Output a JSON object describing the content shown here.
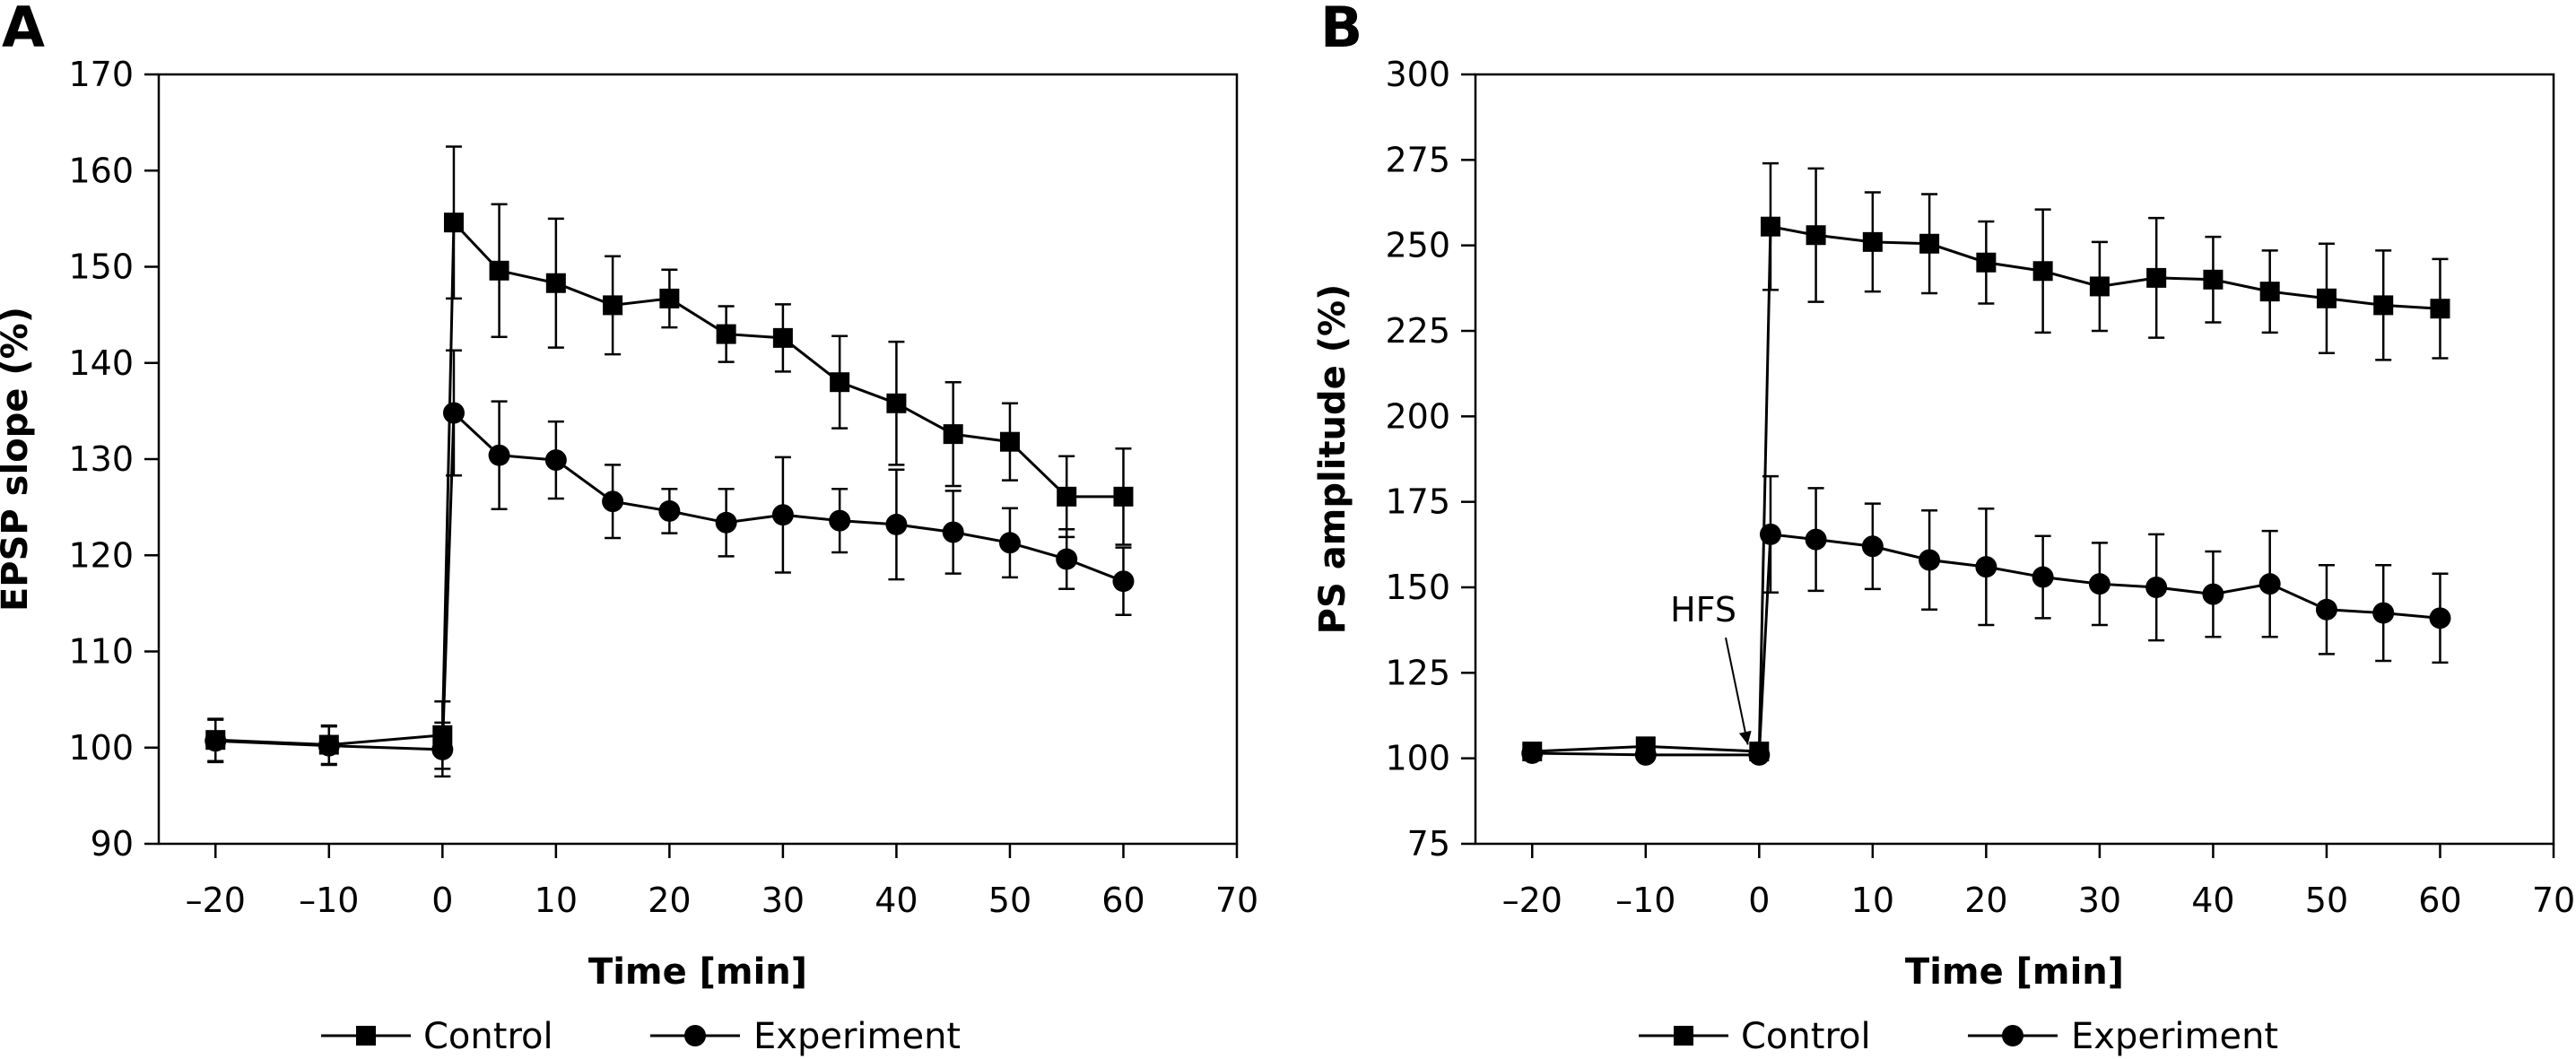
{
  "chart_data": [
    {
      "type": "line",
      "panel_label": "A",
      "xlabel": "Time [min]",
      "ylabel": "EPSP slope (%)",
      "xlim": [
        -25,
        70
      ],
      "ylim": [
        90,
        170
      ],
      "xticks": [
        -20,
        -10,
        0,
        10,
        20,
        30,
        40,
        50,
        60,
        70
      ],
      "xtick_labels": [
        "–20",
        "–10",
        "0",
        "10",
        "20",
        "30",
        "40",
        "50",
        "60",
        "70"
      ],
      "yticks": [
        90,
        100,
        110,
        120,
        130,
        140,
        150,
        160,
        170
      ],
      "grid": false,
      "legend_position": "bottom",
      "annotation": null,
      "series": [
        {
          "name": "Control",
          "marker": "square",
          "x": [
            -20,
            -10,
            0,
            1,
            5,
            10,
            15,
            20,
            25,
            30,
            35,
            40,
            45,
            50,
            55,
            60
          ],
          "y": [
            100.8,
            100.3,
            101.3,
            154.6,
            149.6,
            148.3,
            146.0,
            146.7,
            143.0,
            142.6,
            138.0,
            135.8,
            132.6,
            131.8,
            126.1,
            126.1
          ],
          "err": [
            2.2,
            2.0,
            3.5,
            7.9,
            6.9,
            6.7,
            5.1,
            3.0,
            2.9,
            3.5,
            4.8,
            6.4,
            5.4,
            4.0,
            4.2,
            5.0
          ]
        },
        {
          "name": "Experiment",
          "marker": "circle",
          "x": [
            -20,
            -10,
            0,
            1,
            5,
            10,
            15,
            20,
            25,
            30,
            35,
            40,
            45,
            50,
            55,
            60
          ],
          "y": [
            100.7,
            100.2,
            99.8,
            134.8,
            130.4,
            129.9,
            125.6,
            124.6,
            123.4,
            124.2,
            123.6,
            123.2,
            122.4,
            121.3,
            119.6,
            117.3
          ],
          "err": [
            2.2,
            2.0,
            2.8,
            6.5,
            5.6,
            4.0,
            3.8,
            2.3,
            3.5,
            6.0,
            3.3,
            5.7,
            4.3,
            3.6,
            3.1,
            3.5
          ]
        }
      ]
    },
    {
      "type": "line",
      "panel_label": "B",
      "xlabel": "Time [min]",
      "ylabel": "PS amplitude (%)",
      "xlim": [
        -25,
        70
      ],
      "ylim": [
        75,
        300
      ],
      "xticks": [
        -20,
        -10,
        0,
        10,
        20,
        30,
        40,
        50,
        60,
        70
      ],
      "xtick_labels": [
        "–20",
        "–10",
        "0",
        "10",
        "20",
        "30",
        "40",
        "50",
        "60",
        "70"
      ],
      "yticks": [
        75,
        100,
        125,
        150,
        175,
        200,
        225,
        250,
        275,
        300
      ],
      "grid": false,
      "legend_position": "bottom",
      "annotation": {
        "text": "HFS",
        "x": -2,
        "y": 140,
        "arrow_to_x": -1,
        "arrow_to_y": 104
      },
      "series": [
        {
          "name": "Control",
          "marker": "square",
          "x": [
            -20,
            -10,
            0,
            1,
            5,
            10,
            15,
            20,
            25,
            30,
            35,
            40,
            45,
            50,
            55,
            60
          ],
          "y": [
            102,
            103.5,
            102,
            255.5,
            253,
            251,
            250.5,
            245,
            242.5,
            238,
            240.5,
            240,
            236.5,
            234.5,
            232.5,
            231.5
          ],
          "err": [
            0,
            0,
            0,
            18.5,
            19.5,
            14.5,
            14.5,
            12,
            18,
            13,
            17.5,
            12.5,
            12,
            16,
            16,
            14.5
          ]
        },
        {
          "name": "Experiment",
          "marker": "circle",
          "x": [
            -20,
            -10,
            0,
            1,
            5,
            10,
            15,
            20,
            25,
            30,
            35,
            40,
            45,
            50,
            55,
            60
          ],
          "y": [
            101.5,
            101,
            101,
            165.5,
            164,
            162,
            158,
            156,
            153,
            151,
            150,
            148,
            151,
            143.5,
            142.5,
            141
          ],
          "err": [
            0,
            0,
            0,
            17,
            15,
            12.5,
            14.5,
            17,
            12,
            12,
            15.5,
            12.5,
            15.5,
            13,
            14,
            13
          ]
        }
      ]
    }
  ]
}
